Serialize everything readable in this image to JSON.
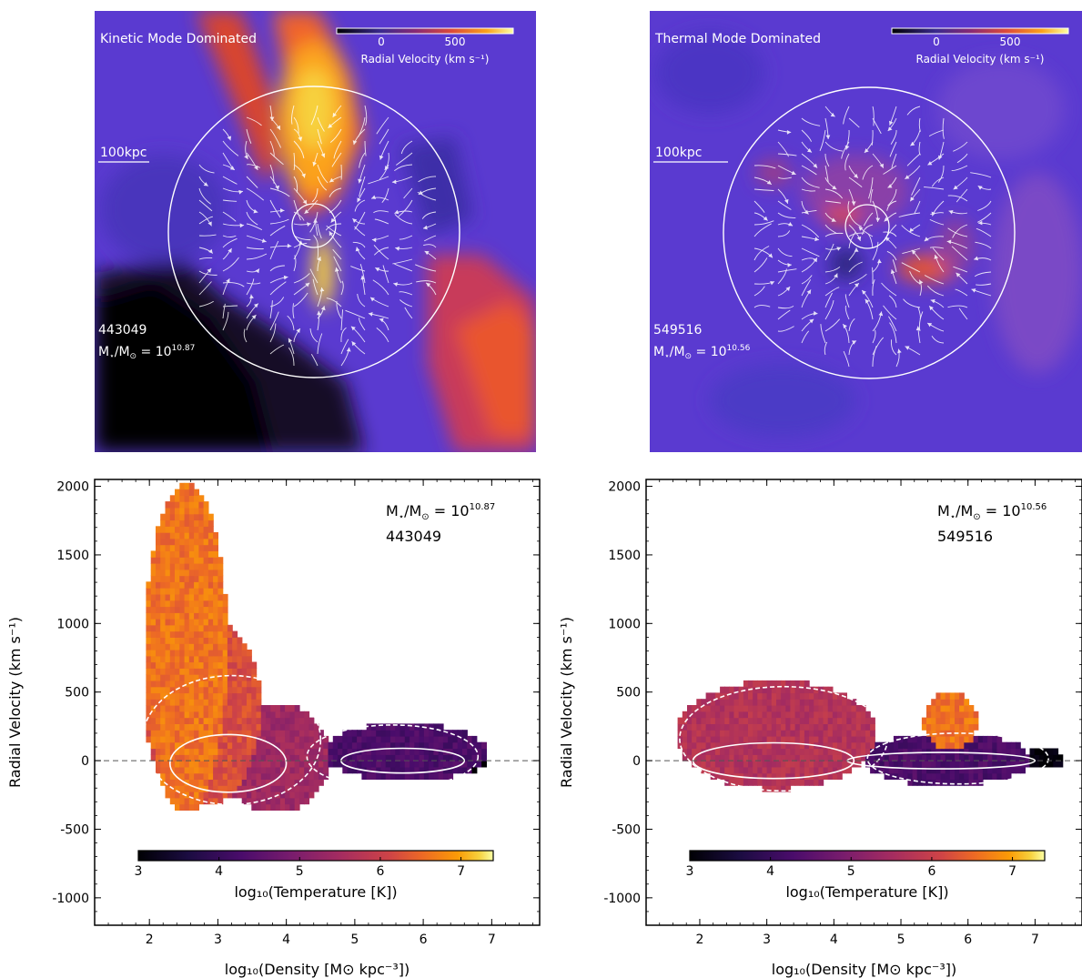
{
  "maps": [
    {
      "mode_label": "Kinetic Mode Dominated",
      "scale_label": "100kpc",
      "galaxy_id": "443049",
      "mass_prefix": "M",
      "mass_equals": "= 10",
      "mass_exp": "10.87",
      "colorbar": {
        "label": "Radial Velocity (km s⁻¹)",
        "ticks": [
          "0",
          "500"
        ],
        "cmap": "inferno"
      }
    },
    {
      "mode_label": "Thermal Mode Dominated",
      "scale_label": "100kpc",
      "galaxy_id": "549516",
      "mass_prefix": "M",
      "mass_equals": "= 10",
      "mass_exp": "10.56",
      "colorbar": {
        "label": "Radial Velocity (km s⁻¹)",
        "ticks": [
          "0",
          "500"
        ],
        "cmap": "inferno"
      }
    }
  ],
  "chart_data": [
    {
      "type": "heatmap",
      "galaxy_id": "443049",
      "mass_exp": "10.87",
      "xlabel": "log₁₀(Density [M⊙ kpc⁻³])",
      "ylabel": "Radial Velocity (km s⁻¹)",
      "xlim": [
        1.2,
        7.7
      ],
      "ylim": [
        -1200,
        2050
      ],
      "xticks": [
        2,
        3,
        4,
        5,
        6,
        7
      ],
      "yticks": [
        -1000,
        -500,
        0,
        500,
        1000,
        1500,
        2000
      ],
      "colorbar": {
        "label": "log₁₀(Temperature [K])",
        "ticks": [
          3,
          4,
          5,
          6,
          7
        ],
        "range": [
          3,
          7.4
        ]
      },
      "zero_line": 0,
      "regions": [
        {
          "x": [
            1.9,
            3.1
          ],
          "y": [
            -400,
            2000
          ],
          "temperature": 6.6
        },
        {
          "x": [
            1.9,
            3.6
          ],
          "y": [
            -350,
            1050
          ],
          "temperature": 6.2
        },
        {
          "x": [
            3.0,
            4.6
          ],
          "y": [
            -400,
            400
          ],
          "temperature": 5.4
        },
        {
          "x": [
            4.5,
            6.9
          ],
          "y": [
            -170,
            250
          ],
          "temperature": 4.3
        },
        {
          "x": [
            6.4,
            6.9
          ],
          "y": [
            -100,
            80
          ],
          "temperature": 3.0
        }
      ],
      "contours": [
        {
          "style": "solid",
          "x": [
            2.3,
            4.0
          ],
          "y": [
            -230,
            190
          ]
        },
        {
          "style": "solid",
          "x": [
            4.8,
            6.6
          ],
          "y": [
            -90,
            90
          ]
        },
        {
          "style": "dashed",
          "x": [
            1.9,
            4.5
          ],
          "y": [
            -320,
            620
          ]
        },
        {
          "style": "dashed",
          "x": [
            4.3,
            6.8
          ],
          "y": [
            -200,
            260
          ]
        }
      ]
    },
    {
      "type": "heatmap",
      "galaxy_id": "549516",
      "mass_exp": "10.56",
      "xlabel": "log₁₀(Density [M⊙ kpc⁻³])",
      "ylabel": "Radial Velocity (km s⁻¹)",
      "xlim": [
        1.2,
        7.7
      ],
      "ylim": [
        -1200,
        2050
      ],
      "xticks": [
        2,
        3,
        4,
        5,
        6,
        7
      ],
      "yticks": [
        -1000,
        -500,
        0,
        500,
        1000,
        1500,
        2000
      ],
      "colorbar": {
        "label": "log₁₀(Temperature [K])",
        "ticks": [
          3,
          4,
          5,
          6,
          7
        ],
        "range": [
          3,
          7.4
        ]
      },
      "zero_line": 0,
      "regions": [
        {
          "x": [
            1.6,
            4.6
          ],
          "y": [
            -230,
            560
          ],
          "temperature": 5.7
        },
        {
          "x": [
            4.4,
            6.9
          ],
          "y": [
            -200,
            180
          ],
          "temperature": 4.3
        },
        {
          "x": [
            6.8,
            7.4
          ],
          "y": [
            -90,
            70
          ],
          "temperature": 3.0
        },
        {
          "x": [
            5.3,
            6.1
          ],
          "y": [
            50,
            480
          ],
          "temperature": 6.6
        }
      ],
      "contours": [
        {
          "style": "solid",
          "x": [
            1.9,
            4.3
          ],
          "y": [
            -130,
            130
          ]
        },
        {
          "style": "solid",
          "x": [
            4.2,
            7.0
          ],
          "y": [
            -60,
            60
          ]
        },
        {
          "style": "dashed",
          "x": [
            1.7,
            4.8
          ],
          "y": [
            -220,
            540
          ]
        },
        {
          "style": "dashed",
          "x": [
            4.5,
            7.2
          ],
          "y": [
            -170,
            200
          ]
        }
      ]
    }
  ]
}
